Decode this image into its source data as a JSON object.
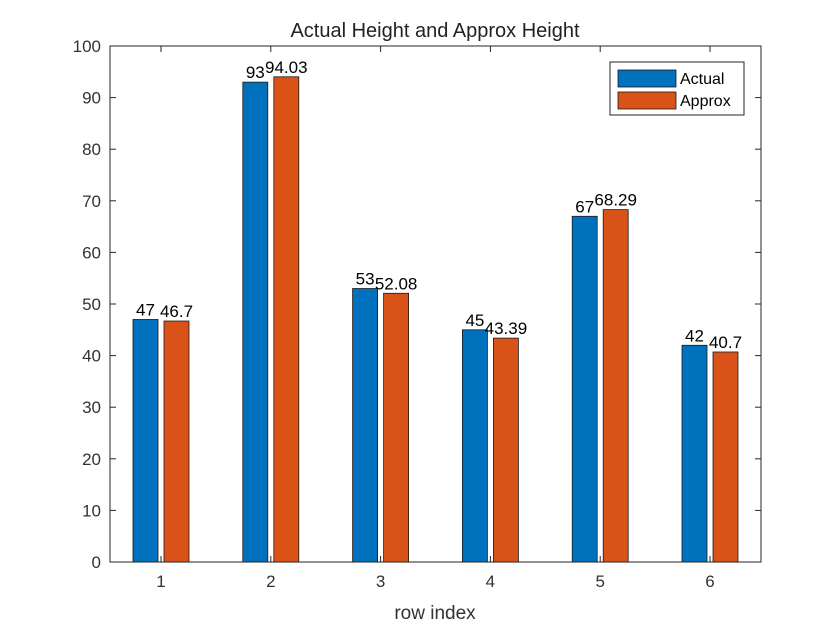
{
  "chart_data": {
    "type": "bar",
    "title": "Actual Height and Approx Height",
    "xlabel": "row index",
    "ylabel": "",
    "categories": [
      "1",
      "2",
      "3",
      "4",
      "5",
      "6"
    ],
    "series": [
      {
        "name": "Actual",
        "color": "#0072BD",
        "values": [
          47,
          93,
          53,
          45,
          67,
          42
        ],
        "labels": [
          "47",
          "93",
          "53",
          "45",
          "67",
          "42"
        ]
      },
      {
        "name": "Approx",
        "color": "#D95319",
        "values": [
          46.7,
          94.03,
          52.08,
          43.39,
          68.29,
          40.7
        ],
        "labels": [
          "46.7",
          "94.03",
          "52.08",
          "43.39",
          "68.29",
          "40.7"
        ]
      }
    ],
    "ylim": [
      0,
      100
    ],
    "yticks": [
      "0",
      "10",
      "20",
      "30",
      "40",
      "50",
      "60",
      "70",
      "80",
      "90",
      "100"
    ],
    "grid": false,
    "legend_position": "top-right"
  }
}
